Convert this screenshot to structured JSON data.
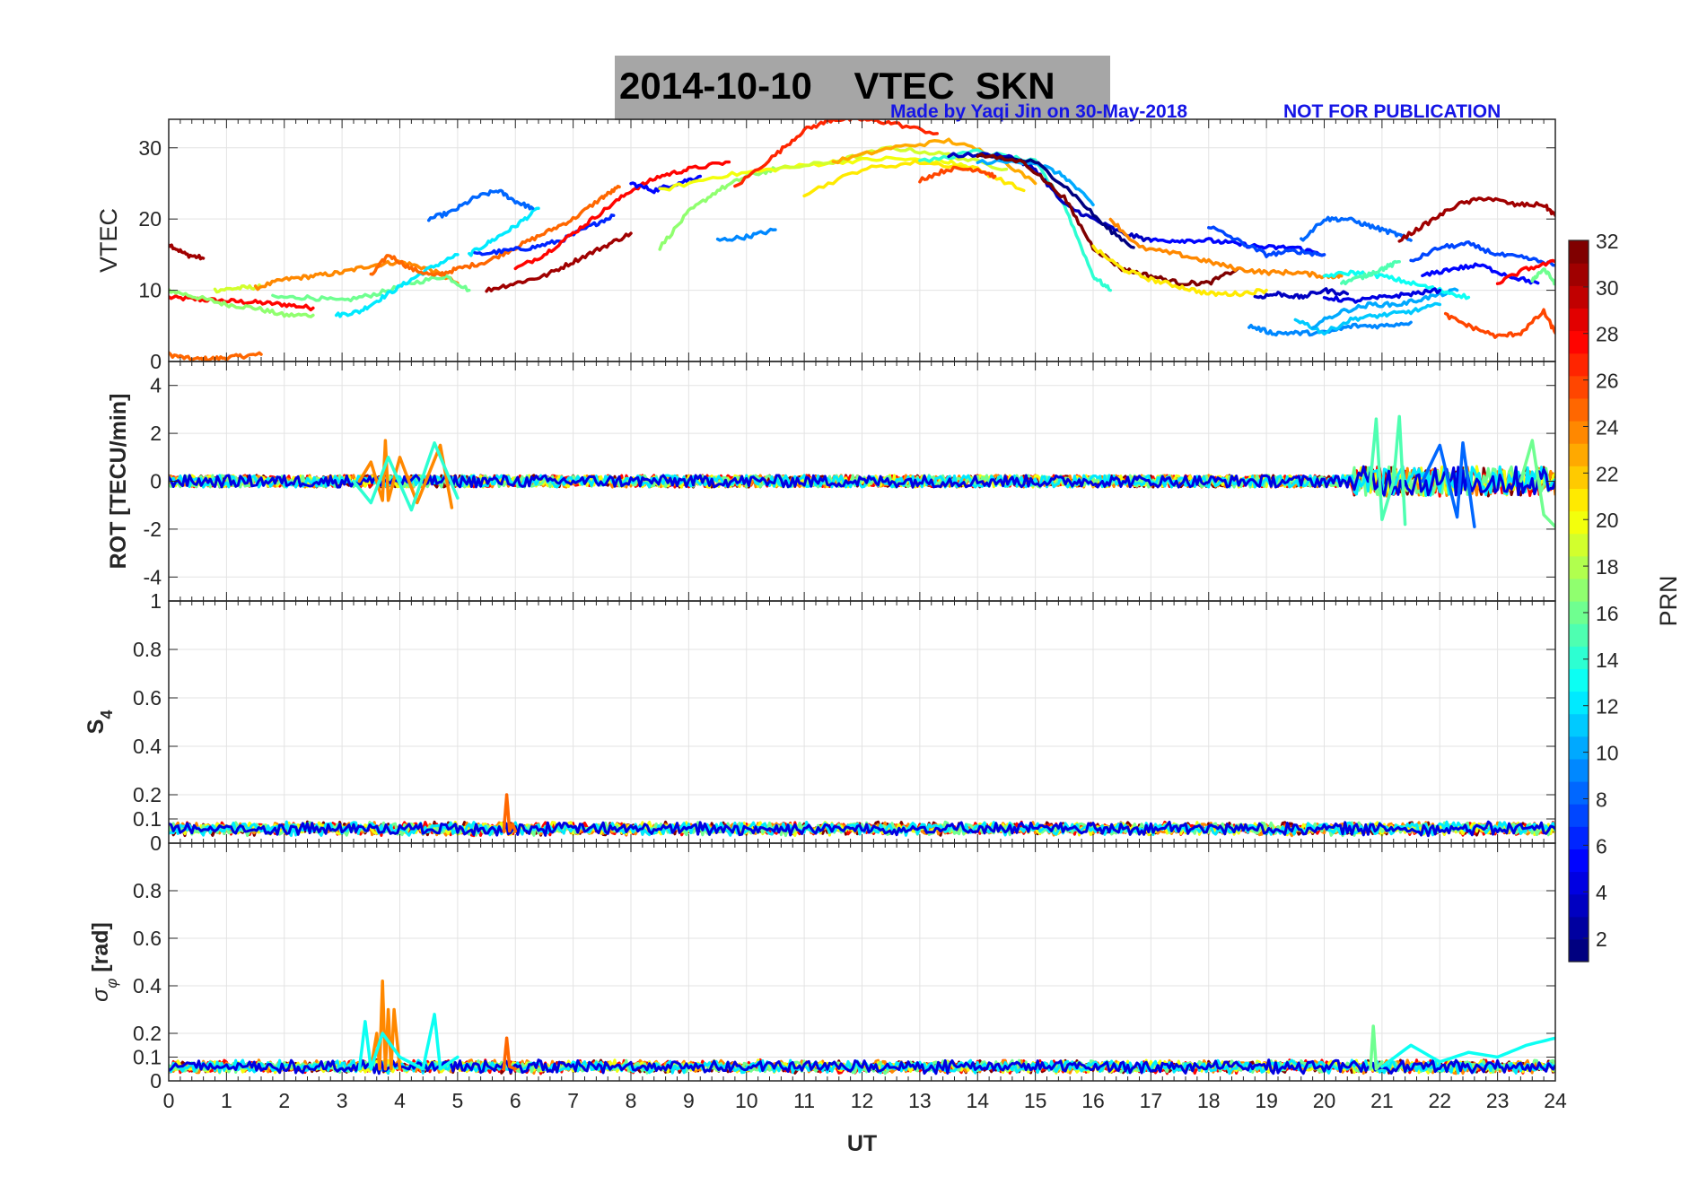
{
  "title": "2014-10-10    VTEC  SKN",
  "credit_left": "Made by Yaqi Jin on 30-May-2018",
  "credit_right": "NOT FOR PUBLICATION",
  "xlabel": "UT",
  "colorbar": {
    "label": "PRN",
    "range": [
      1,
      32
    ],
    "ticks": [
      2,
      4,
      6,
      8,
      10,
      12,
      14,
      16,
      18,
      20,
      22,
      24,
      26,
      28,
      30,
      32
    ],
    "colormap": "jet"
  },
  "chart_data": [
    {
      "type": "line",
      "ylabel": "VTEC",
      "xlim": [
        0,
        24
      ],
      "ylim": [
        0,
        34
      ],
      "xticks": [
        0,
        1,
        2,
        3,
        4,
        5,
        6,
        7,
        8,
        9,
        10,
        11,
        12,
        13,
        14,
        15,
        16,
        17,
        18,
        19,
        20,
        21,
        22,
        23,
        24
      ],
      "yticks": [
        0,
        10,
        20,
        30
      ],
      "grid": true,
      "series": [
        {
          "prn": 28,
          "x": [
            0.0,
            0.5,
            1.0,
            1.5,
            2.0,
            2.5
          ],
          "y": [
            9,
            8.7,
            8.5,
            8.3,
            8,
            7.5
          ]
        },
        {
          "prn": 31,
          "x": [
            0.0,
            0.3,
            0.6
          ],
          "y": [
            16.5,
            15,
            14.5
          ]
        },
        {
          "prn": 25,
          "x": [
            0.0,
            0.4,
            0.8,
            1.2,
            1.6
          ],
          "y": [
            1,
            0.3,
            0.4,
            0.7,
            1
          ]
        },
        {
          "prn": 17,
          "x": [
            0.0,
            0.5,
            1.0,
            1.5,
            2.0,
            2.5
          ],
          "y": [
            10,
            9,
            8,
            7.5,
            6.5,
            6.5
          ]
        },
        {
          "prn": 19,
          "x": [
            0.8,
            1.2,
            1.6
          ],
          "y": [
            10,
            10.3,
            10.5
          ]
        },
        {
          "prn": 24,
          "x": [
            1.5,
            2.0,
            2.5,
            3.0,
            3.5,
            4.0,
            4.5,
            5.0
          ],
          "y": [
            10.3,
            11.5,
            12,
            12.5,
            13.5,
            14,
            13,
            11
          ]
        },
        {
          "prn": 16,
          "x": [
            1.8,
            2.4,
            3.0,
            3.6,
            4.2,
            4.8,
            5.2
          ],
          "y": [
            9,
            9,
            8.5,
            9.5,
            11,
            12,
            10
          ]
        },
        {
          "prn": 12,
          "x": [
            2.9,
            3.3,
            3.7,
            4.1,
            4.5,
            5.0
          ],
          "y": [
            6.5,
            7,
            9,
            11,
            13,
            15
          ]
        },
        {
          "prn": 25,
          "x": [
            3.5,
            3.8,
            4.2,
            4.6,
            5.0,
            5.5,
            6.0,
            6.5,
            7.0,
            7.5,
            7.8
          ],
          "y": [
            12,
            15,
            13,
            12,
            13,
            14,
            16,
            18,
            20,
            23,
            24.5
          ]
        },
        {
          "prn": 12,
          "x": [
            5.2,
            5.6,
            6.0,
            6.4
          ],
          "y": [
            15,
            17,
            19,
            21.5
          ]
        },
        {
          "prn": 8,
          "x": [
            4.5,
            4.9,
            5.3,
            5.7,
            6.0,
            6.3
          ],
          "y": [
            20,
            21,
            23,
            24,
            22.5,
            21.5
          ]
        },
        {
          "prn": 6,
          "x": [
            5.3,
            5.8,
            6.3,
            6.8,
            7.3,
            7.7
          ],
          "y": [
            15,
            15.5,
            16,
            17,
            19,
            20.5
          ]
        },
        {
          "prn": 31,
          "x": [
            5.5,
            6.0,
            6.5,
            7.0,
            7.5,
            8.0
          ],
          "y": [
            10,
            11,
            12,
            14,
            16,
            18
          ]
        },
        {
          "prn": 28,
          "x": [
            6.0,
            6.5,
            7.0,
            7.5,
            8.0,
            8.5,
            9.0,
            9.7
          ],
          "y": [
            13,
            15,
            18,
            21,
            24,
            26,
            27,
            28
          ]
        },
        {
          "prn": 5,
          "x": [
            8.0,
            8.4,
            8.8,
            9.2
          ],
          "y": [
            25,
            24,
            25,
            26
          ]
        },
        {
          "prn": 17,
          "x": [
            8.5,
            9.0,
            9.5,
            10.0,
            10.5
          ],
          "y": [
            16,
            21,
            24,
            26,
            27
          ]
        },
        {
          "prn": 20,
          "x": [
            8.5,
            9.5,
            10.5,
            11.5,
            12.5,
            13.5,
            14.0
          ],
          "y": [
            24,
            26,
            27,
            28,
            28.5,
            28,
            27
          ]
        },
        {
          "prn": 9,
          "x": [
            9.5,
            10.0,
            10.5
          ],
          "y": [
            17,
            17.5,
            18.5
          ]
        },
        {
          "prn": 27,
          "x": [
            9.8,
            10.5,
            11.0,
            11.5,
            12.0,
            12.5,
            13.3
          ],
          "y": [
            24.5,
            29,
            32.5,
            34,
            34,
            33.5,
            32
          ]
        },
        {
          "prn": 19,
          "x": [
            10.5,
            11.5,
            12.5,
            13.5,
            14.5
          ],
          "y": [
            27,
            28,
            30,
            29,
            27
          ]
        },
        {
          "prn": 21,
          "x": [
            11.0,
            12.0,
            13.0,
            14.0,
            14.8
          ],
          "y": [
            23.5,
            27,
            28,
            27,
            24
          ]
        },
        {
          "prn": 23,
          "x": [
            11.5,
            12.5,
            13.5,
            14.3,
            15.0
          ],
          "y": [
            28,
            30,
            31,
            29,
            25
          ]
        },
        {
          "prn": 26,
          "x": [
            13.0,
            13.5,
            14.0,
            14.3
          ],
          "y": [
            25.5,
            27,
            27,
            26
          ]
        },
        {
          "prn": 14,
          "x": [
            13.0,
            14.0,
            15.0,
            15.5,
            16.0,
            16.3
          ],
          "y": [
            28,
            29.5,
            28,
            22,
            12,
            10
          ]
        },
        {
          "prn": 3,
          "x": [
            13.5,
            14.5,
            15.0,
            15.5,
            16.0,
            16.5,
            17.0
          ],
          "y": [
            29,
            29,
            27,
            22,
            20,
            18,
            17
          ]
        },
        {
          "prn": 10,
          "x": [
            14.0,
            15.0,
            15.5,
            16.0
          ],
          "y": [
            28,
            28,
            26,
            22
          ]
        },
        {
          "prn": 1,
          "x": [
            14.0,
            15.0,
            15.6,
            16.2,
            16.7
          ],
          "y": [
            29,
            28,
            24,
            19,
            16
          ]
        },
        {
          "prn": 32,
          "x": [
            14.0,
            14.8,
            15.5,
            16.0,
            16.5,
            17.0,
            17.5,
            18.0,
            18.5
          ],
          "y": [
            29,
            28,
            23,
            16,
            13,
            12,
            11,
            11,
            13
          ]
        },
        {
          "prn": 21,
          "x": [
            16.0,
            16.5,
            17.0,
            17.5,
            18.0,
            18.5,
            19.0
          ],
          "y": [
            16,
            13,
            11.5,
            10.5,
            9.5,
            9.5,
            10
          ]
        },
        {
          "prn": 24,
          "x": [
            16.3,
            16.8,
            17.5,
            18.0,
            18.5,
            19.0,
            19.5,
            20.0,
            20.3
          ],
          "y": [
            20,
            16,
            15,
            14,
            13,
            12.5,
            12.5,
            12,
            12
          ]
        },
        {
          "prn": 5,
          "x": [
            17.0,
            17.5,
            18.0,
            18.5,
            19.0,
            19.5,
            20.0
          ],
          "y": [
            17,
            17,
            17,
            16.5,
            16,
            16,
            15
          ]
        },
        {
          "prn": 7,
          "x": [
            18.0,
            18.5,
            19.0,
            19.5,
            20.0
          ],
          "y": [
            19,
            17,
            15,
            15.5,
            15
          ]
        },
        {
          "prn": 3,
          "x": [
            18.8,
            19.2,
            19.6,
            20.0,
            20.4
          ],
          "y": [
            9,
            9.5,
            9,
            10,
            9.5
          ]
        },
        {
          "prn": 9,
          "x": [
            18.7,
            19.1,
            19.5,
            20.0,
            20.5,
            21.0,
            21.5
          ],
          "y": [
            5,
            4,
            4,
            4,
            5,
            5,
            5.5
          ]
        },
        {
          "prn": 8,
          "x": [
            19.6,
            20.0,
            20.4,
            20.8,
            21.2,
            21.5
          ],
          "y": [
            17,
            20,
            20,
            19,
            18,
            17
          ]
        },
        {
          "prn": 11,
          "x": [
            19.5,
            20.0,
            20.5,
            21.0,
            21.5,
            22.0
          ],
          "y": [
            6,
            4,
            6,
            6.5,
            7,
            8
          ]
        },
        {
          "prn": 10,
          "x": [
            19.8,
            20.3,
            20.8,
            21.3,
            21.8,
            22.3
          ],
          "y": [
            5,
            7,
            8,
            8,
            9,
            10
          ]
        },
        {
          "prn": 13,
          "x": [
            20.0,
            20.5,
            21.0,
            21.5,
            22.0,
            22.5
          ],
          "y": [
            12,
            12.5,
            12,
            11,
            10,
            9
          ]
        },
        {
          "prn": 15,
          "x": [
            20.3,
            20.7,
            21.0,
            21.3
          ],
          "y": [
            11,
            12,
            13,
            14
          ]
        },
        {
          "prn": 4,
          "x": [
            20.0,
            20.5,
            21.0,
            21.5,
            22.0
          ],
          "y": [
            9,
            8.5,
            9,
            9.5,
            10
          ]
        },
        {
          "prn": 31,
          "x": [
            21.3,
            21.8,
            22.3,
            22.8,
            23.3,
            23.8,
            24.0
          ],
          "y": [
            17,
            19.5,
            22,
            23,
            22,
            22,
            20.5
          ]
        },
        {
          "prn": 7,
          "x": [
            21.5,
            22.0,
            22.5,
            23.0,
            23.5,
            24.0
          ],
          "y": [
            14,
            16,
            16.5,
            15,
            14.5,
            13.5
          ]
        },
        {
          "prn": 5,
          "x": [
            21.7,
            22.2,
            22.7,
            23.2,
            23.7
          ],
          "y": [
            12,
            13,
            13.5,
            12,
            11
          ]
        },
        {
          "prn": 26,
          "x": [
            22.1,
            22.5,
            23.0,
            23.4,
            23.8,
            24.0
          ],
          "y": [
            6.5,
            5,
            3.5,
            4,
            7,
            4
          ]
        },
        {
          "prn": 28,
          "x": [
            23.0,
            23.5,
            24.0
          ],
          "y": [
            11,
            13,
            14
          ]
        },
        {
          "prn": 16,
          "x": [
            23.6,
            23.8,
            24.0
          ],
          "y": [
            11.5,
            13,
            11
          ]
        }
      ]
    },
    {
      "type": "line",
      "ylabel": "ROT [TECU/min]",
      "xlim": [
        0,
        24
      ],
      "ylim": [
        -5,
        5
      ],
      "yticks": [
        -4,
        -2,
        0,
        2,
        4
      ],
      "grid": true,
      "series": [
        {
          "prn": 24,
          "x": [
            3.3,
            3.5,
            3.7,
            3.75,
            3.8,
            4.0,
            4.3,
            4.7,
            4.9
          ],
          "y": [
            0,
            0.8,
            -0.8,
            1.7,
            -0.8,
            1.0,
            -0.9,
            1.5,
            -1.1
          ]
        },
        {
          "prn": 14,
          "x": [
            3.2,
            3.5,
            3.8,
            4.2,
            4.6,
            5.0
          ],
          "y": [
            0,
            -0.9,
            1.0,
            -1.2,
            1.6,
            -0.7
          ]
        },
        {
          "prn": 15,
          "x": [
            20.8,
            20.9,
            21.0,
            21.2,
            21.3,
            21.4
          ],
          "y": [
            0,
            2.6,
            -1.6,
            0,
            2.7,
            -1.8
          ]
        },
        {
          "prn": 8,
          "x": [
            21.7,
            22.0,
            22.3,
            22.4,
            22.6
          ],
          "y": [
            0,
            1.5,
            -1.5,
            1.6,
            -1.9
          ]
        },
        {
          "prn": 16,
          "x": [
            23.4,
            23.6,
            23.8,
            24.0
          ],
          "y": [
            0,
            1.7,
            -1.4,
            -1.9
          ]
        }
      ]
    },
    {
      "type": "line",
      "ylabel": "S4",
      "xlim": [
        0,
        24
      ],
      "ylim": [
        0,
        1
      ],
      "yticks": [
        0,
        0.1,
        0.2,
        0.4,
        0.6,
        0.8,
        1
      ],
      "grid": true,
      "series": [
        {
          "prn": 25,
          "x": [
            5.8,
            5.85,
            5.9,
            5.95,
            6.0
          ],
          "y": [
            0.05,
            0.2,
            0.05,
            0.08,
            0.05
          ]
        }
      ]
    },
    {
      "type": "line",
      "ylabel": "σφ [rad]",
      "xlim": [
        0,
        24
      ],
      "ylim": [
        0,
        1
      ],
      "yticks": [
        0,
        0.1,
        0.2,
        0.4,
        0.6,
        0.8
      ],
      "grid": true,
      "series": [
        {
          "prn": 24,
          "x": [
            3.5,
            3.6,
            3.65,
            3.7,
            3.75,
            3.8,
            3.85,
            3.9,
            4.0
          ],
          "y": [
            0.05,
            0.2,
            0.05,
            0.42,
            0.05,
            0.3,
            0.05,
            0.3,
            0.05
          ]
        },
        {
          "prn": 13,
          "x": [
            3.3,
            3.4,
            3.5,
            3.7,
            4.0,
            4.4,
            4.6,
            4.7,
            5.0
          ],
          "y": [
            0.05,
            0.25,
            0.05,
            0.2,
            0.1,
            0.05,
            0.28,
            0.05,
            0.1
          ]
        },
        {
          "prn": 25,
          "x": [
            5.8,
            5.85,
            5.9,
            6.0
          ],
          "y": [
            0.05,
            0.18,
            0.06,
            0.05
          ]
        },
        {
          "prn": 16,
          "x": [
            20.8,
            20.85,
            20.9,
            21.0
          ],
          "y": [
            0.05,
            0.23,
            0.05,
            0.08
          ]
        },
        {
          "prn": 13,
          "x": [
            21.0,
            21.5,
            22.0,
            22.5,
            23.0,
            23.5,
            24.0
          ],
          "y": [
            0.06,
            0.15,
            0.08,
            0.12,
            0.1,
            0.15,
            0.18
          ]
        }
      ]
    }
  ]
}
